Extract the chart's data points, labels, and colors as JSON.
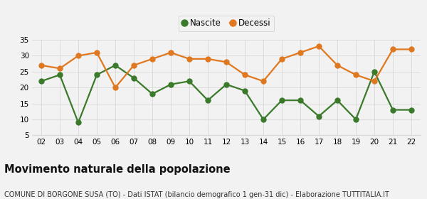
{
  "years": [
    2,
    3,
    4,
    5,
    6,
    7,
    8,
    9,
    10,
    11,
    12,
    13,
    14,
    15,
    16,
    17,
    18,
    19,
    20,
    21,
    22
  ],
  "nascite": [
    22,
    24,
    9,
    24,
    27,
    23,
    18,
    21,
    22,
    16,
    21,
    19,
    10,
    16,
    16,
    11,
    16,
    10,
    25,
    13,
    13
  ],
  "decessi": [
    27,
    26,
    30,
    31,
    20,
    27,
    29,
    31,
    29,
    29,
    28,
    24,
    22,
    29,
    31,
    33,
    27,
    24,
    22,
    32,
    32
  ],
  "nascite_color": "#3a7a2a",
  "decessi_color": "#e07820",
  "background_color": "#f2f2f2",
  "grid_color": "#d8d8d8",
  "ylim": [
    5,
    35
  ],
  "yticks": [
    5,
    10,
    15,
    20,
    25,
    30,
    35
  ],
  "title": "Movimento naturale della popolazione",
  "subtitle": "COMUNE DI BORGONE SUSA (TO) - Dati ISTAT (bilancio demografico 1 gen-31 dic) - Elaborazione TUTTITALIA.IT",
  "legend_labels": [
    "Nascite",
    "Decessi"
  ],
  "marker_size": 5,
  "line_width": 1.6,
  "title_fontsize": 10.5,
  "subtitle_fontsize": 7,
  "tick_fontsize": 7.5
}
